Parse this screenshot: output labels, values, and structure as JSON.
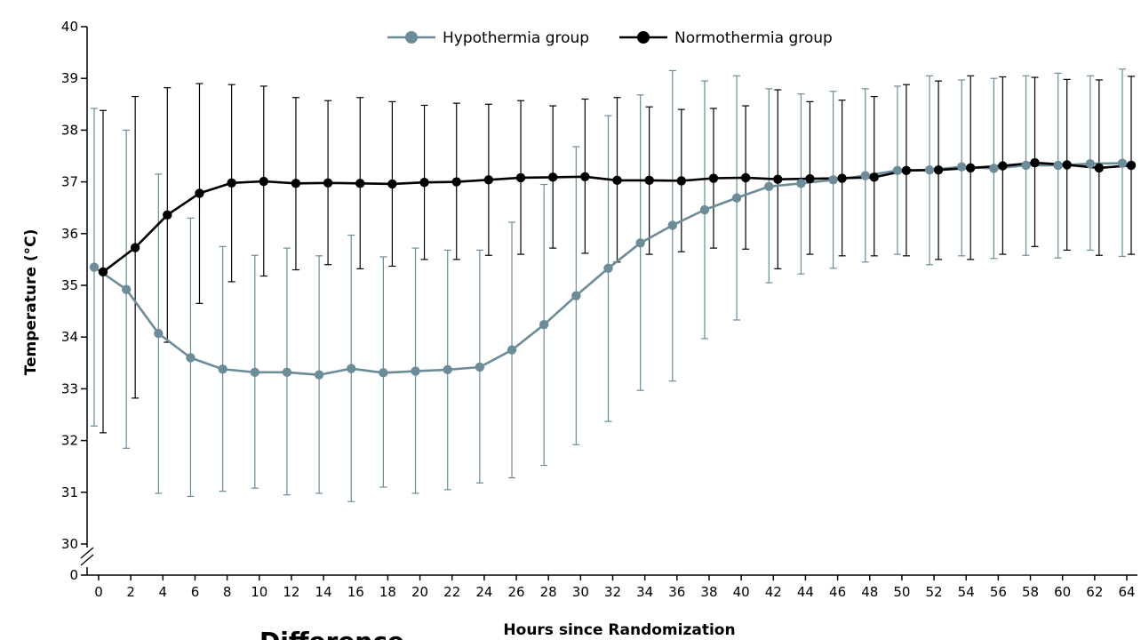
{
  "chart_data": {
    "type": "line",
    "xlabel": "Hours since Randomization",
    "ylabel": "Temperature (°C)",
    "x": [
      0,
      2,
      4,
      6,
      8,
      10,
      12,
      14,
      16,
      18,
      20,
      22,
      24,
      26,
      28,
      30,
      32,
      34,
      36,
      38,
      40,
      42,
      44,
      46,
      48,
      50,
      52,
      54,
      56,
      58,
      60,
      62,
      64
    ],
    "xlim": [
      0,
      64
    ],
    "ylim": [
      30,
      40
    ],
    "y_ticks": [
      "30",
      "31",
      "32",
      "33",
      "34",
      "35",
      "36",
      "37",
      "38",
      "39",
      "40"
    ],
    "y_origin_label": "0",
    "y_axis_break": true,
    "grid": false,
    "legend_position": "top-center",
    "error_bars": true,
    "series": [
      {
        "name": "Hypothermia group",
        "color": "#6b8c98",
        "marker": "circle",
        "values": [
          35.35,
          34.92,
          34.07,
          33.6,
          33.38,
          33.32,
          33.32,
          33.27,
          33.39,
          33.31,
          33.34,
          33.37,
          33.42,
          33.75,
          34.24,
          34.8,
          35.33,
          35.82,
          36.16,
          36.46,
          36.69,
          36.91,
          36.97,
          37.04,
          37.12,
          37.22,
          37.23,
          37.29,
          37.26,
          37.32,
          37.32,
          37.35,
          37.36
        ],
        "err_high": [
          38.42,
          38.0,
          37.15,
          36.3,
          35.75,
          35.58,
          35.72,
          35.57,
          35.97,
          35.55,
          35.72,
          35.68,
          35.68,
          36.22,
          36.95,
          37.68,
          38.28,
          38.68,
          39.15,
          38.95,
          39.05,
          38.8,
          38.7,
          38.75,
          38.8,
          38.85,
          39.05,
          38.97,
          39.0,
          39.05,
          39.1,
          39.05,
          39.18
        ],
        "err_low": [
          32.28,
          31.85,
          30.98,
          30.92,
          31.02,
          31.08,
          30.95,
          30.98,
          30.82,
          31.1,
          30.98,
          31.05,
          31.18,
          31.28,
          31.52,
          31.92,
          32.37,
          32.97,
          33.15,
          33.97,
          34.33,
          35.05,
          35.22,
          35.33,
          35.45,
          35.6,
          35.4,
          35.57,
          35.52,
          35.58,
          35.53,
          35.68,
          35.56
        ]
      },
      {
        "name": "Normothermia group",
        "color": "#000000",
        "marker": "circle",
        "values": [
          35.26,
          35.73,
          36.36,
          36.78,
          36.98,
          37.01,
          36.97,
          36.98,
          36.97,
          36.96,
          36.99,
          37.0,
          37.04,
          37.08,
          37.09,
          37.1,
          37.03,
          37.03,
          37.02,
          37.07,
          37.08,
          37.05,
          37.06,
          37.07,
          37.09,
          37.22,
          37.23,
          37.27,
          37.31,
          37.37,
          37.33,
          37.27,
          37.32
        ],
        "err_high": [
          38.38,
          38.65,
          38.82,
          38.9,
          38.88,
          38.85,
          38.63,
          38.57,
          38.63,
          38.55,
          38.48,
          38.52,
          38.5,
          38.57,
          38.47,
          38.6,
          38.63,
          38.45,
          38.4,
          38.42,
          38.47,
          38.78,
          38.55,
          38.58,
          38.65,
          38.88,
          38.95,
          39.05,
          39.03,
          39.02,
          38.98,
          38.97,
          39.04
        ],
        "err_low": [
          32.15,
          32.82,
          33.9,
          34.65,
          35.07,
          35.18,
          35.3,
          35.4,
          35.32,
          35.37,
          35.5,
          35.5,
          35.58,
          35.6,
          35.72,
          35.62,
          35.45,
          35.6,
          35.65,
          35.72,
          35.7,
          35.32,
          35.6,
          35.57,
          35.57,
          35.57,
          35.5,
          35.5,
          35.6,
          35.75,
          35.68,
          35.58,
          35.6
        ]
      }
    ],
    "cut_off_text": "Difference"
  }
}
